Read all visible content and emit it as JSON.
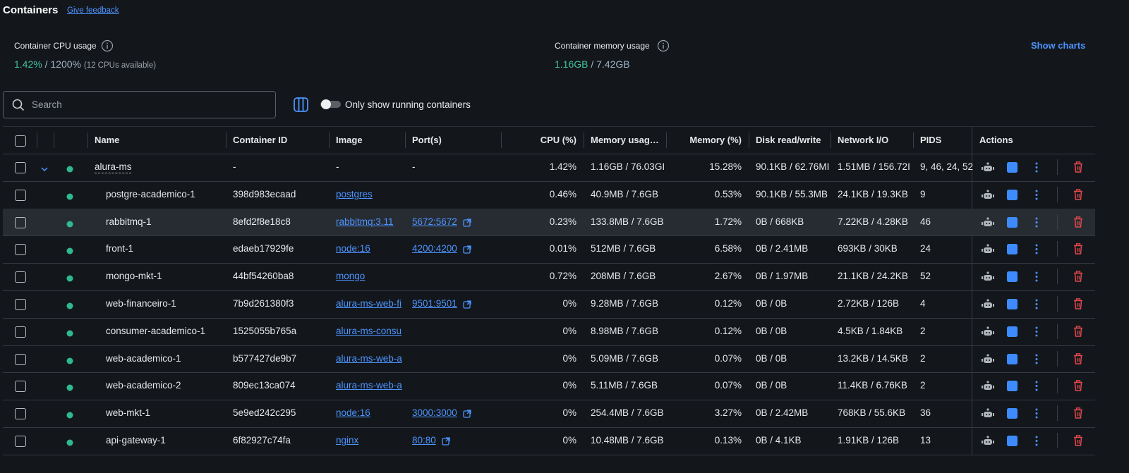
{
  "header": {
    "title": "Containers",
    "feedback": "Give feedback"
  },
  "stats": {
    "cpu_label": "Container CPU usage",
    "cpu_used": "1.42%",
    "cpu_total": "/ 1200%",
    "cpu_note": "(12 CPUs available)",
    "mem_label": "Container memory usage",
    "mem_used": "1.16GB",
    "mem_total": "/ 7.42GB",
    "show_charts": "Show charts"
  },
  "toolbar": {
    "search": "Search",
    "toggle": "Only show running containers"
  },
  "table": {
    "columns": [
      "Name",
      "Container ID",
      "Image",
      "Port(s)",
      "CPU (%)",
      "Memory usag…",
      "Memory (%)",
      "Disk read/write",
      "Network I/O",
      "PIDS",
      "Actions"
    ],
    "group": [
      "alura-ms",
      "-",
      "-",
      "-",
      "1.42%",
      "1.16GB / 76.03GI",
      "15.28%",
      "90.1KB / 62.76MI",
      "1.51MB / 156.72I",
      "9, 46, 24, 52"
    ],
    "rows": [
      [
        "postgre-academico-1",
        "398d983ecaad",
        "postgres",
        "",
        "0.46%",
        "40.9MB / 7.6GB",
        "0.53%",
        "90.1KB / 55.3MB",
        "24.1KB / 19.3KB",
        "9"
      ],
      [
        "rabbitmq-1",
        "8efd2f8e18c8",
        "rabbitmq:3.11",
        "5672:5672",
        "0.23%",
        "133.8MB / 7.6GB",
        "1.72%",
        "0B / 668KB",
        "7.22KB / 4.28KB",
        "46"
      ],
      [
        "front-1",
        "edaeb17929fe",
        "node:16",
        "4200:4200",
        "0.01%",
        "512MB / 7.6GB",
        "6.58%",
        "0B / 2.41MB",
        "693KB / 30KB",
        "24"
      ],
      [
        "mongo-mkt-1",
        "44bf54260ba8",
        "mongo",
        "",
        "0.72%",
        "208MB / 7.6GB",
        "2.67%",
        "0B / 1.97MB",
        "21.1KB / 24.2KB",
        "52"
      ],
      [
        "web-financeiro-1",
        "7b9d261380f3",
        "alura-ms-web-fi",
        "9501:9501",
        "0%",
        "9.28MB / 7.6GB",
        "0.12%",
        "0B / 0B",
        "2.72KB / 126B",
        "4"
      ],
      [
        "consumer-academico-1",
        "1525055b765a",
        "alura-ms-consu",
        "",
        "0%",
        "8.98MB / 7.6GB",
        "0.12%",
        "0B / 0B",
        "4.5KB / 1.84KB",
        "2"
      ],
      [
        "web-academico-1",
        "b577427de9b7",
        "alura-ms-web-a",
        "",
        "0%",
        "5.09MB / 7.6GB",
        "0.07%",
        "0B / 0B",
        "13.2KB / 14.5KB",
        "2"
      ],
      [
        "web-academico-2",
        "809ec13ca074",
        "alura-ms-web-a",
        "",
        "0%",
        "5.11MB / 7.6GB",
        "0.07%",
        "0B / 0B",
        "11.4KB / 6.76KB",
        "2"
      ],
      [
        "web-mkt-1",
        "5e9ed242c295",
        "node:16",
        "3000:3000",
        "0%",
        "254.4MB / 7.6GB",
        "3.27%",
        "0B / 2.42MB",
        "768KB / 55.6KB",
        "36"
      ],
      [
        "api-gateway-1",
        "6f82927c74fa",
        "nginx",
        "80:80",
        "0%",
        "10.48MB / 7.6GB",
        "0.13%",
        "0B / 4.1KB",
        "1.91KB / 126B",
        "13"
      ]
    ]
  }
}
